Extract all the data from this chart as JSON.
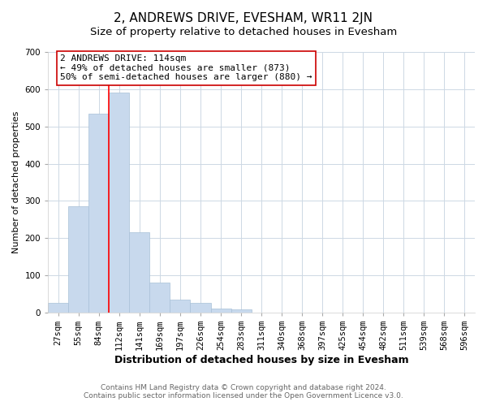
{
  "title": "2, ANDREWS DRIVE, EVESHAM, WR11 2JN",
  "subtitle": "Size of property relative to detached houses in Evesham",
  "xlabel": "Distribution of detached houses by size in Evesham",
  "ylabel": "Number of detached properties",
  "bar_labels": [
    "27sqm",
    "55sqm",
    "84sqm",
    "112sqm",
    "141sqm",
    "169sqm",
    "197sqm",
    "226sqm",
    "254sqm",
    "283sqm",
    "311sqm",
    "340sqm",
    "368sqm",
    "397sqm",
    "425sqm",
    "454sqm",
    "482sqm",
    "511sqm",
    "539sqm",
    "568sqm",
    "596sqm"
  ],
  "bar_values": [
    25,
    285,
    535,
    590,
    215,
    80,
    35,
    25,
    10,
    8,
    0,
    0,
    0,
    0,
    0,
    0,
    0,
    0,
    0,
    0,
    0
  ],
  "bar_color": "#c8d9ed",
  "bar_edge_color": "#a8c0d8",
  "red_line_index": 3,
  "annotation_text": "2 ANDREWS DRIVE: 114sqm\n← 49% of detached houses are smaller (873)\n50% of semi-detached houses are larger (880) →",
  "annotation_box_color": "#ffffff",
  "annotation_box_edge_color": "#cc0000",
  "ylim": [
    0,
    700
  ],
  "yticks": [
    0,
    100,
    200,
    300,
    400,
    500,
    600,
    700
  ],
  "footer_line1": "Contains HM Land Registry data © Crown copyright and database right 2024.",
  "footer_line2": "Contains public sector information licensed under the Open Government Licence v3.0.",
  "background_color": "#ffffff",
  "grid_color": "#cdd8e4",
  "title_fontsize": 11,
  "subtitle_fontsize": 9.5,
  "xlabel_fontsize": 9,
  "ylabel_fontsize": 8,
  "tick_fontsize": 7.5,
  "annotation_fontsize": 8,
  "footer_fontsize": 6.5
}
